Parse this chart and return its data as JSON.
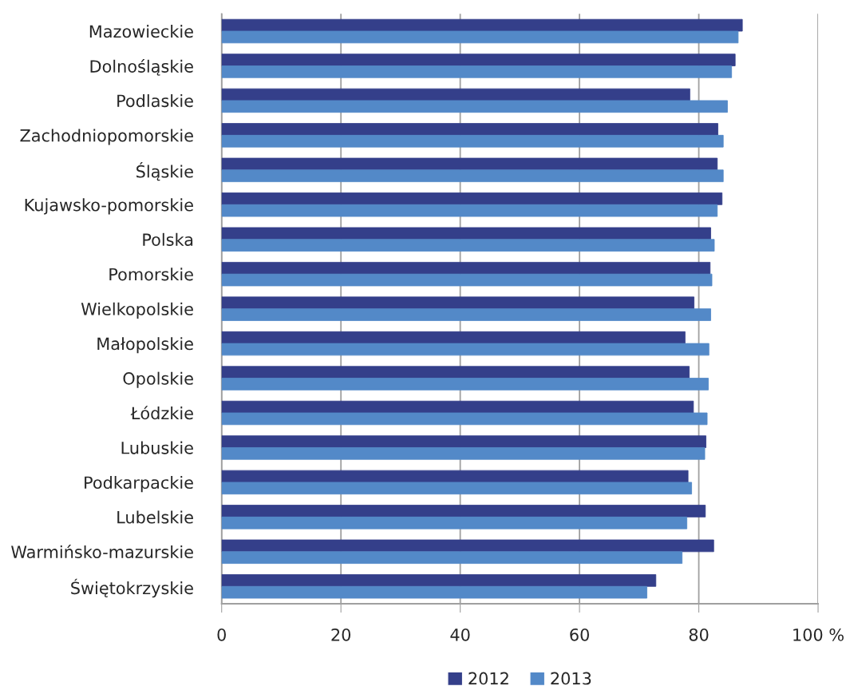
{
  "chart_data": {
    "type": "bar",
    "orientation": "horizontal",
    "categories": [
      "Mazowieckie",
      "Dolnośląskie",
      "Podlaskie",
      "Zachodniopomorskie",
      "Śląskie",
      "Kujawsko-pomorskie",
      "Polska",
      "Pomorskie",
      "Wielkopolskie",
      "Małopolskie",
      "Opolskie",
      "Łódzkie",
      "Lubuskie",
      "Podkarpackie",
      "Lubelskie",
      "Warmińsko-mazurskie",
      "Świętokrzyskie"
    ],
    "series": [
      {
        "name": "2012",
        "color": "#343f8a",
        "values": [
          87.3,
          86.1,
          78.5,
          83.2,
          83.1,
          83.9,
          82.0,
          81.9,
          79.2,
          77.7,
          78.4,
          79.1,
          81.2,
          78.2,
          81.1,
          82.5,
          72.8
        ]
      },
      {
        "name": "2013",
        "color": "#5389c8",
        "values": [
          86.6,
          85.5,
          84.8,
          84.1,
          84.1,
          83.1,
          82.6,
          82.2,
          82.0,
          81.7,
          81.6,
          81.4,
          81.0,
          78.8,
          78.0,
          77.2,
          71.3
        ]
      }
    ],
    "xlim": [
      0,
      100
    ],
    "xticks": [
      0,
      20,
      40,
      60,
      80,
      {
        "value": 100,
        "label": "100 %"
      }
    ],
    "grid": "x",
    "legend": "bottom"
  }
}
